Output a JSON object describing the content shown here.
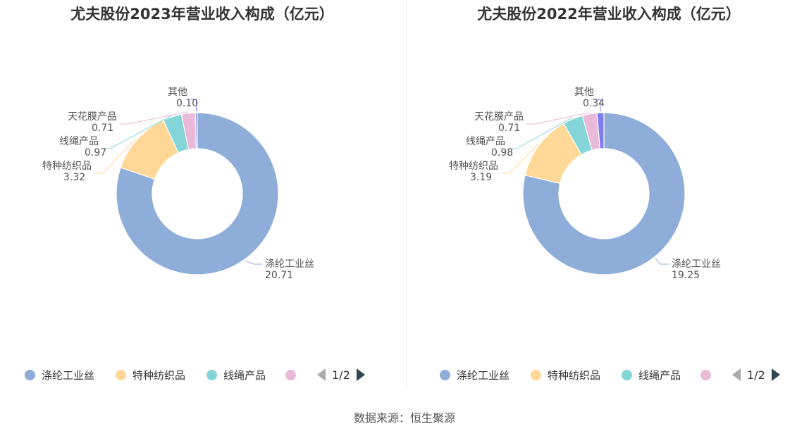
{
  "source_label": "数据来源：恒生聚源",
  "chart_data": [
    {
      "type": "pie",
      "title": "尤夫股份2023年营业收入构成（亿元）",
      "categories": [
        "涤纶工业丝",
        "特种纺织品",
        "线绳产品",
        "天花膜产品",
        "其他"
      ],
      "values": [
        20.71,
        3.32,
        0.97,
        0.71,
        0.1
      ],
      "value_labels": [
        "20.71",
        "3.32",
        "0.97",
        "0.71",
        "0.10"
      ],
      "colors": [
        "#8eadd9",
        "#ffd897",
        "#84d5d7",
        "#e8b9d8",
        "#7e7df2"
      ],
      "legend": {
        "items": [
          "涤纶工业丝",
          "特种纺织品",
          "线绳产品",
          ""
        ],
        "page": "1/2",
        "position": "bottom"
      }
    },
    {
      "type": "pie",
      "title": "尤夫股份2022年营业收入构成（亿元）",
      "categories": [
        "涤纶工业丝",
        "特种纺织品",
        "线绳产品",
        "天花膜产品",
        "其他"
      ],
      "values": [
        19.25,
        3.19,
        0.98,
        0.71,
        0.34
      ],
      "value_labels": [
        "19.25",
        "3.19",
        "0.98",
        "0.71",
        "0.34"
      ],
      "colors": [
        "#8eadd9",
        "#ffd897",
        "#84d5d7",
        "#e8b9d8",
        "#7e7df2"
      ],
      "legend": {
        "items": [
          "涤纶工业丝",
          "特种纺织品",
          "线绳产品",
          ""
        ],
        "page": "1/2",
        "position": "bottom"
      }
    }
  ]
}
